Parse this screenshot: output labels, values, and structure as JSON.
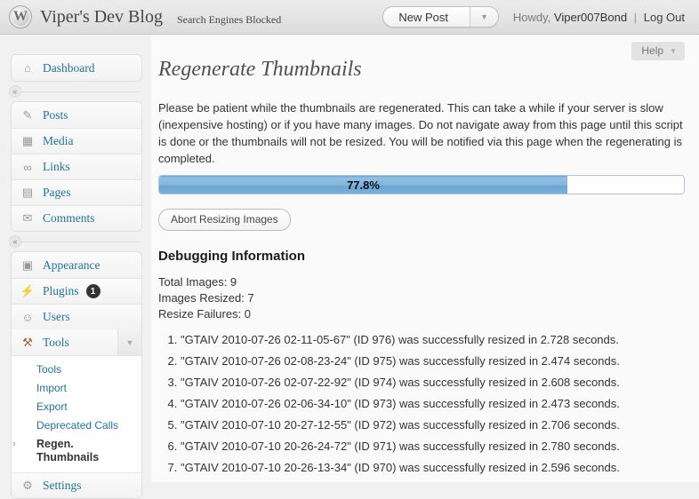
{
  "colors": {
    "link": "#21759b",
    "badge": "#333333",
    "progress": "#79abd6"
  },
  "header": {
    "logo_letter": "W",
    "site_title": "Viper's Dev Blog",
    "subtitle": "Search Engines Blocked",
    "new_post_label": "New Post",
    "howdy": "Howdy,",
    "username": "Viper007Bond",
    "divider": "|",
    "logout": "Log Out"
  },
  "sidebar": {
    "collapse_glyph": "«",
    "dashboard": {
      "icon": "home-icon",
      "label": "Dashboard"
    },
    "group1": [
      {
        "icon": "pushpin-icon",
        "label": "Posts"
      },
      {
        "icon": "media-icon",
        "label": "Media"
      },
      {
        "icon": "links-icon",
        "label": "Links"
      },
      {
        "icon": "pages-icon",
        "label": "Pages"
      },
      {
        "icon": "comments-icon",
        "label": "Comments"
      }
    ],
    "group2": [
      {
        "icon": "appearance-icon",
        "label": "Appearance"
      },
      {
        "icon": "plugins-icon",
        "label": "Plugins",
        "badge": "1"
      },
      {
        "icon": "users-icon",
        "label": "Users"
      }
    ],
    "tools": {
      "icon": "tools-icon",
      "label": "Tools",
      "submenu": [
        {
          "label": "Tools"
        },
        {
          "label": "Import"
        },
        {
          "label": "Export"
        },
        {
          "label": "Deprecated Calls"
        },
        {
          "label": "Regen. Thumbnails",
          "current": true
        }
      ]
    },
    "settings": {
      "icon": "settings-icon",
      "label": "Settings"
    }
  },
  "main": {
    "help_label": "Help",
    "title": "Regenerate Thumbnails",
    "intro": "Please be patient while the thumbnails are regenerated. This can take a while if your server is slow (inexpensive hosting) or if you have many images. Do not navigate away from this page until this script is done or the thumbnails will not be resized. You will be notified via this page when the regenerating is completed.",
    "progress": {
      "percent": 77.8,
      "label": "77.8%"
    },
    "abort_label": "Abort Resizing Images",
    "debug": {
      "heading": "Debugging Information",
      "stats": [
        "Total Images: 9",
        "Images Resized: 7",
        "Resize Failures: 0"
      ],
      "log": [
        "\"GTAIV 2010-07-26 02-11-05-67\" (ID 976) was successfully resized in 2.728 seconds.",
        "\"GTAIV 2010-07-26 02-08-23-24\" (ID 975) was successfully resized in 2.474 seconds.",
        "\"GTAIV 2010-07-26 02-07-22-92\" (ID 974) was successfully resized in 2.608 seconds.",
        "\"GTAIV 2010-07-26 02-06-34-10\" (ID 973) was successfully resized in 2.473 seconds.",
        "\"GTAIV 2010-07-10 20-27-12-55\" (ID 972) was successfully resized in 2.706 seconds.",
        "\"GTAIV 2010-07-10 20-26-24-72\" (ID 971) was successfully resized in 2.780 seconds.",
        "\"GTAIV 2010-07-10 20-26-13-34\" (ID 970) was successfully resized in 2.596 seconds."
      ]
    }
  }
}
